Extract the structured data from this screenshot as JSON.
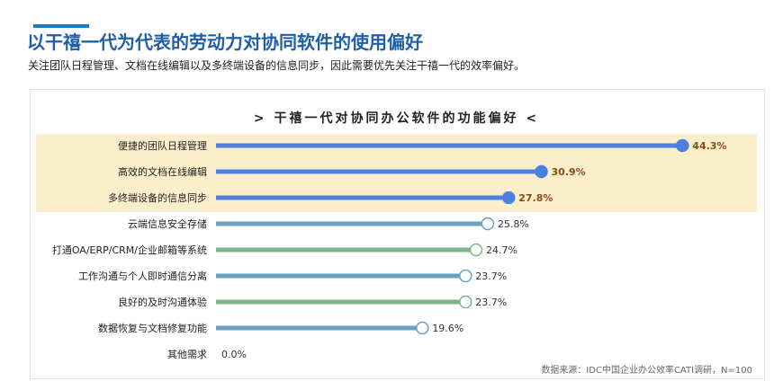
{
  "header": {
    "title": "以干禧一代为代表的劳动力对协同软件的使用偏好",
    "subtitle": "关注团队日程管理、文档在线编辑以及多终端设备的信息同步，因此需要优先关注干禧一代的效率偏好。"
  },
  "chart_data": {
    "type": "bar",
    "orientation": "horizontal",
    "title": "> 干禧一代对协同办公软件的功能偏好 <",
    "unit": "%",
    "categories": [
      "便捷的团队日程管理",
      "高效的文档在线编辑",
      "多终端设备的信息同步",
      "云端信息安全存储",
      "打通OA/ERP/CRM/企业邮箱等系统",
      "工作沟通与个人即时通信分离",
      "良好的及时沟通体验",
      "数据恢复与文档修复功能",
      "其他需求"
    ],
    "values": [
      44.3,
      30.9,
      27.8,
      25.8,
      24.7,
      23.7,
      23.7,
      19.6,
      0.0
    ],
    "value_labels": [
      "44.3%",
      "30.9%",
      "27.8%",
      "25.8%",
      "24.7%",
      "23.7%",
      "23.7%",
      "19.6%",
      "0.0%"
    ],
    "highlighted_count": 3,
    "source": "数据来源：IDC中国企业办公效率CATI调研，N=100"
  },
  "colors": {
    "highlight_bar": "#4c7fe0",
    "highlight_band": "#fbefcb",
    "highlight_label": "#8a4a17",
    "bar_green": "#7bb48e",
    "bar_blue": "#6b9fbf"
  }
}
